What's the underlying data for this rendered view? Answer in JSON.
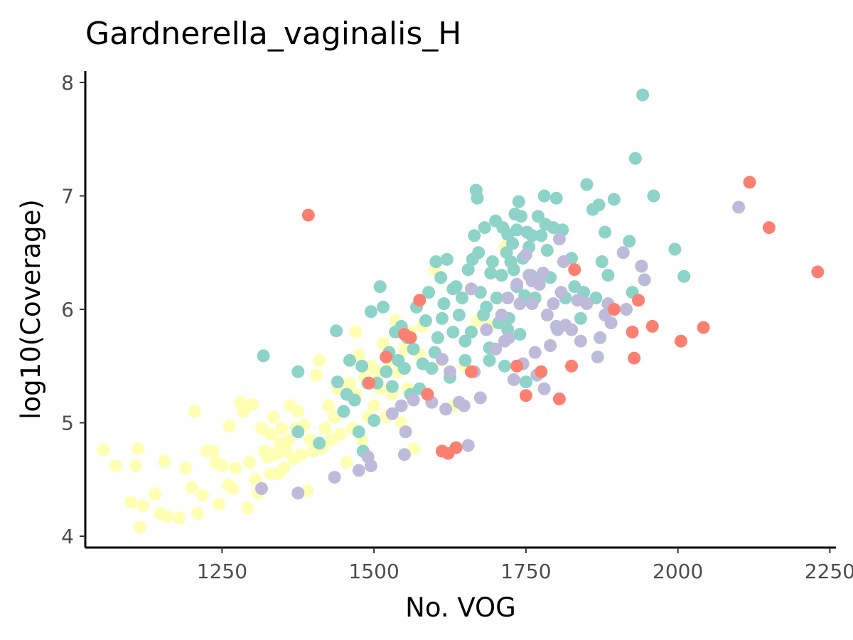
{
  "chart_data": {
    "type": "scatter",
    "title": "Gardnerella_vaginalis_H",
    "xlabel": "No. VOG",
    "ylabel": "log10(Coverage)",
    "xlim": [
      1025,
      2260
    ],
    "ylim": [
      3.9,
      8.1
    ],
    "xticks": [
      1250,
      1500,
      1750,
      2000,
      2250
    ],
    "yticks": [
      4,
      5,
      6,
      7,
      8
    ],
    "grid": false,
    "legend": "none",
    "point_colors": {
      "teal": "#8dd3c7",
      "yellow": "#ffffb3",
      "lavender": "#bebada",
      "salmon": "#fb8072"
    },
    "series": [
      {
        "color": "#ffffb3",
        "points": [
          [
            1055,
            4.76
          ],
          [
            1075,
            4.62
          ],
          [
            1100,
            4.3
          ],
          [
            1108,
            4.62
          ],
          [
            1115,
            4.08
          ],
          [
            1120,
            4.27
          ],
          [
            1112,
            4.77
          ],
          [
            1140,
            4.37
          ],
          [
            1148,
            4.2
          ],
          [
            1155,
            4.66
          ],
          [
            1160,
            4.17
          ],
          [
            1180,
            4.16
          ],
          [
            1190,
            4.6
          ],
          [
            1200,
            4.43
          ],
          [
            1210,
            4.2
          ],
          [
            1218,
            4.36
          ],
          [
            1205,
            5.1
          ],
          [
            1225,
            4.75
          ],
          [
            1235,
            4.75
          ],
          [
            1245,
            4.28
          ],
          [
            1250,
            4.62
          ],
          [
            1262,
            4.97
          ],
          [
            1268,
            4.42
          ],
          [
            1272,
            4.6
          ],
          [
            1280,
            5.18
          ],
          [
            1285,
            5.1
          ],
          [
            1292,
            4.25
          ],
          [
            1295,
            4.65
          ],
          [
            1300,
            5.16
          ],
          [
            1305,
            4.5
          ],
          [
            1310,
            4.38
          ],
          [
            1315,
            4.95
          ],
          [
            1320,
            4.75
          ],
          [
            1325,
            4.7
          ],
          [
            1330,
            4.9
          ],
          [
            1335,
            5.05
          ],
          [
            1338,
            4.72
          ],
          [
            1342,
            4.55
          ],
          [
            1345,
            4.82
          ],
          [
            1348,
            4.95
          ],
          [
            1352,
            4.6
          ],
          [
            1355,
            4.75
          ],
          [
            1360,
            4.85
          ],
          [
            1362,
            5.15
          ],
          [
            1368,
            4.68
          ],
          [
            1372,
            4.95
          ],
          [
            1375,
            5.1
          ],
          [
            1380,
            4.72
          ],
          [
            1385,
            4.98
          ],
          [
            1390,
            4.4
          ],
          [
            1395,
            4.85
          ],
          [
            1400,
            4.75
          ],
          [
            1405,
            5.42
          ],
          [
            1410,
            5.55
          ],
          [
            1415,
            4.78
          ],
          [
            1420,
            4.95
          ],
          [
            1425,
            5.15
          ],
          [
            1430,
            4.85
          ],
          [
            1435,
            5.05
          ],
          [
            1440,
            5.3
          ],
          [
            1445,
            4.9
          ],
          [
            1450,
            5.1
          ],
          [
            1455,
            4.65
          ],
          [
            1460,
            5.35
          ],
          [
            1465,
            4.95
          ],
          [
            1470,
            5.25
          ],
          [
            1475,
            5.6
          ],
          [
            1470,
            5.8
          ],
          [
            1480,
            4.85
          ],
          [
            1485,
            5.4
          ],
          [
            1490,
            5.05
          ],
          [
            1495,
            5.5
          ],
          [
            1500,
            5.15
          ],
          [
            1505,
            5.45
          ],
          [
            1510,
            5.3
          ],
          [
            1515,
            5.7
          ],
          [
            1520,
            5.05
          ],
          [
            1525,
            5.55
          ],
          [
            1530,
            5.25
          ],
          [
            1535,
            5.9
          ],
          [
            1540,
            5.45
          ],
          [
            1545,
            5.0
          ],
          [
            1550,
            5.65
          ],
          [
            1555,
            5.3
          ],
          [
            1560,
            5.8
          ],
          [
            1565,
            4.77
          ],
          [
            1575,
            5.6
          ],
          [
            1580,
            5.85
          ],
          [
            1600,
            6.35
          ],
          [
            1612,
            5.55
          ],
          [
            1630,
            5.15
          ],
          [
            1650,
            5.5
          ],
          [
            1670,
            5.9
          ],
          [
            1690,
            5.85
          ],
          [
            1715,
            6.55
          ],
          [
            1260,
            4.45
          ],
          [
            1240,
            4.65
          ],
          [
            1330,
            4.55
          ]
        ]
      },
      {
        "color": "#8dd3c7",
        "points": [
          [
            1318,
            5.59
          ],
          [
            1375,
            5.45
          ],
          [
            1375,
            4.92
          ],
          [
            1410,
            4.82
          ],
          [
            1438,
            5.81
          ],
          [
            1440,
            5.36
          ],
          [
            1450,
            5.1
          ],
          [
            1455,
            5.25
          ],
          [
            1460,
            5.55
          ],
          [
            1468,
            5.2
          ],
          [
            1475,
            4.92
          ],
          [
            1480,
            5.5
          ],
          [
            1482,
            4.75
          ],
          [
            1490,
            5.35
          ],
          [
            1495,
            5.98
          ],
          [
            1500,
            5.02
          ],
          [
            1505,
            5.35
          ],
          [
            1510,
            6.2
          ],
          [
            1515,
            6.02
          ],
          [
            1520,
            5.45
          ],
          [
            1525,
            5.62
          ],
          [
            1530,
            5.32
          ],
          [
            1535,
            5.8
          ],
          [
            1540,
            5.55
          ],
          [
            1545,
            5.85
          ],
          [
            1550,
            5.48
          ],
          [
            1555,
            5.75
          ],
          [
            1560,
            5.25
          ],
          [
            1565,
            5.65
          ],
          [
            1570,
            6.02
          ],
          [
            1575,
            5.3
          ],
          [
            1580,
            5.52
          ],
          [
            1585,
            5.9
          ],
          [
            1590,
            6.15
          ],
          [
            1595,
            5.48
          ],
          [
            1600,
            5.62
          ],
          [
            1602,
            6.42
          ],
          [
            1605,
            5.75
          ],
          [
            1610,
            6.28
          ],
          [
            1612,
            5.92
          ],
          [
            1615,
            6.05
          ],
          [
            1620,
            6.44
          ],
          [
            1625,
            5.4
          ],
          [
            1630,
            5.8
          ],
          [
            1635,
            6.2
          ],
          [
            1640,
            5.95
          ],
          [
            1645,
            6.1
          ],
          [
            1650,
            5.55
          ],
          [
            1655,
            6.35
          ],
          [
            1660,
            5.8
          ],
          [
            1662,
            6.44
          ],
          [
            1665,
            6.65
          ],
          [
            1668,
            7.05
          ],
          [
            1670,
            6.98
          ],
          [
            1672,
            6.5
          ],
          [
            1675,
            6.15
          ],
          [
            1680,
            5.95
          ],
          [
            1682,
            6.72
          ],
          [
            1685,
            6.02
          ],
          [
            1690,
            5.66
          ],
          [
            1692,
            6.32
          ],
          [
            1695,
            6.42
          ],
          [
            1700,
            6.78
          ],
          [
            1702,
            6.1
          ],
          [
            1705,
            5.88
          ],
          [
            1710,
            6.3
          ],
          [
            1712,
            6.72
          ],
          [
            1715,
            5.5
          ],
          [
            1718,
            6.5
          ],
          [
            1720,
            6.66
          ],
          [
            1722,
            5.92
          ],
          [
            1725,
            6.42
          ],
          [
            1728,
            6.58
          ],
          [
            1730,
            6.35
          ],
          [
            1732,
            6.84
          ],
          [
            1735,
            6.7
          ],
          [
            1738,
            6.95
          ],
          [
            1740,
            5.78
          ],
          [
            1742,
            6.82
          ],
          [
            1745,
            6.45
          ],
          [
            1748,
            6.12
          ],
          [
            1750,
            5.36
          ],
          [
            1752,
            6.68
          ],
          [
            1755,
            6.55
          ],
          [
            1758,
            6.3
          ],
          [
            1760,
            6.65
          ],
          [
            1765,
            6.1
          ],
          [
            1770,
            6.82
          ],
          [
            1772,
            6.28
          ],
          [
            1775,
            6.65
          ],
          [
            1780,
            7.0
          ],
          [
            1782,
            6.75
          ],
          [
            1785,
            6.52
          ],
          [
            1790,
            6.28
          ],
          [
            1795,
            6.72
          ],
          [
            1800,
            6.98
          ],
          [
            1810,
            6.7
          ],
          [
            1815,
            6.1
          ],
          [
            1825,
            6.45
          ],
          [
            1830,
            6.2
          ],
          [
            1840,
            5.92
          ],
          [
            1845,
            6.15
          ],
          [
            1850,
            7.1
          ],
          [
            1860,
            6.88
          ],
          [
            1865,
            6.1
          ],
          [
            1870,
            6.92
          ],
          [
            1875,
            6.42
          ],
          [
            1880,
            6.68
          ],
          [
            1885,
            6.3
          ],
          [
            1895,
            6.97
          ],
          [
            1920,
            6.6
          ],
          [
            1925,
            6.15
          ],
          [
            1930,
            7.33
          ],
          [
            1940,
            6.38
          ],
          [
            1942,
            7.89
          ],
          [
            1960,
            7.0
          ],
          [
            1995,
            6.53
          ],
          [
            2010,
            6.29
          ],
          [
            1690,
            5.55
          ],
          [
            1720,
            5.82
          ],
          [
            1735,
            6.2
          ],
          [
            1650,
            5.72
          ],
          [
            1630,
            6.18
          ]
        ]
      },
      {
        "color": "#bebada",
        "points": [
          [
            1315,
            4.42
          ],
          [
            1375,
            4.38
          ],
          [
            1435,
            4.52
          ],
          [
            1475,
            4.58
          ],
          [
            1490,
            4.7
          ],
          [
            1495,
            4.62
          ],
          [
            1530,
            5.08
          ],
          [
            1545,
            5.15
          ],
          [
            1550,
            4.72
          ],
          [
            1552,
            4.92
          ],
          [
            1565,
            5.2
          ],
          [
            1595,
            5.18
          ],
          [
            1612,
            5.56
          ],
          [
            1618,
            5.12
          ],
          [
            1625,
            5.45
          ],
          [
            1640,
            5.18
          ],
          [
            1648,
            5.15
          ],
          [
            1655,
            4.8
          ],
          [
            1660,
            6.18
          ],
          [
            1665,
            5.45
          ],
          [
            1675,
            5.22
          ],
          [
            1685,
            5.82
          ],
          [
            1700,
            5.65
          ],
          [
            1710,
            5.95
          ],
          [
            1715,
            5.72
          ],
          [
            1722,
            5.75
          ],
          [
            1730,
            5.38
          ],
          [
            1735,
            6.22
          ],
          [
            1740,
            6.05
          ],
          [
            1745,
            5.52
          ],
          [
            1750,
            6.48
          ],
          [
            1755,
            6.3
          ],
          [
            1760,
            6.05
          ],
          [
            1765,
            5.62
          ],
          [
            1768,
            5.42
          ],
          [
            1772,
            6.22
          ],
          [
            1778,
            6.32
          ],
          [
            1780,
            5.3
          ],
          [
            1785,
            5.95
          ],
          [
            1790,
            5.68
          ],
          [
            1795,
            6.05
          ],
          [
            1800,
            5.85
          ],
          [
            1802,
            5.82
          ],
          [
            1805,
            6.62
          ],
          [
            1808,
            6.15
          ],
          [
            1812,
            6.42
          ],
          [
            1815,
            5.86
          ],
          [
            1825,
            5.82
          ],
          [
            1835,
            6.08
          ],
          [
            1840,
            5.72
          ],
          [
            1850,
            6.05
          ],
          [
            1868,
            5.58
          ],
          [
            1872,
            5.75
          ],
          [
            1880,
            5.95
          ],
          [
            1885,
            6.05
          ],
          [
            1890,
            5.88
          ],
          [
            1910,
            6.5
          ],
          [
            1915,
            6.0
          ],
          [
            1940,
            6.38
          ],
          [
            1945,
            6.26
          ],
          [
            2100,
            6.9
          ],
          [
            1720,
            6.1
          ],
          [
            1760,
            6.25
          ]
        ]
      },
      {
        "color": "#fb8072",
        "points": [
          [
            1392,
            6.83
          ],
          [
            1492,
            5.35
          ],
          [
            1520,
            5.58
          ],
          [
            1550,
            5.78
          ],
          [
            1560,
            5.75
          ],
          [
            1575,
            6.08
          ],
          [
            1588,
            5.25
          ],
          [
            1612,
            4.75
          ],
          [
            1622,
            4.73
          ],
          [
            1635,
            4.78
          ],
          [
            1660,
            5.45
          ],
          [
            1735,
            5.5
          ],
          [
            1750,
            5.24
          ],
          [
            1775,
            5.45
          ],
          [
            1805,
            5.21
          ],
          [
            1825,
            5.5
          ],
          [
            1830,
            6.35
          ],
          [
            1895,
            6.0
          ],
          [
            1925,
            5.8
          ],
          [
            1928,
            5.57
          ],
          [
            1935,
            6.08
          ],
          [
            1958,
            5.85
          ],
          [
            2005,
            5.72
          ],
          [
            2042,
            5.84
          ],
          [
            2118,
            7.12
          ],
          [
            2150,
            6.72
          ],
          [
            2230,
            6.33
          ]
        ]
      }
    ]
  }
}
